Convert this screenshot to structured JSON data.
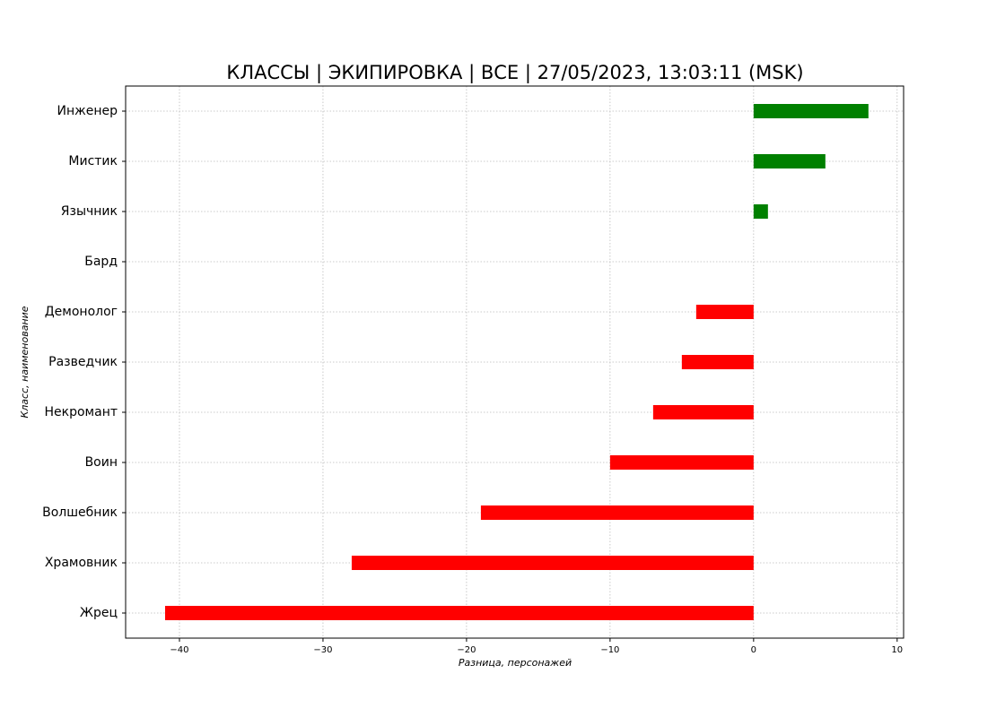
{
  "chart_data": {
    "type": "barh",
    "title": "КЛАССЫ | ЭКИПИРОВКА | ВСЕ | 27/05/2023, 13:03:11 (MSK)",
    "xlabel": "Разница, персонажей",
    "ylabel": "Класс, наименование",
    "categories": [
      "Инженер",
      "Мистик",
      "Язычник",
      "Бард",
      "Демонолог",
      "Разведчик",
      "Некромант",
      "Воин",
      "Волшебник",
      "Храмовник",
      "Жрец"
    ],
    "values": [
      8,
      5,
      1,
      0,
      -4,
      -5,
      -7,
      -10,
      -19,
      -28,
      -41
    ],
    "colors": [
      "green",
      "green",
      "green",
      "red",
      "red",
      "red",
      "red",
      "red",
      "red",
      "red",
      "red"
    ],
    "xlim": [
      -43.75,
      10.45
    ],
    "xticks": [
      {
        "value": -40,
        "label": "−40"
      },
      {
        "value": -30,
        "label": "−30"
      },
      {
        "value": -20,
        "label": "−20"
      },
      {
        "value": -10,
        "label": "−10"
      },
      0,
      10
    ],
    "grid": true
  }
}
